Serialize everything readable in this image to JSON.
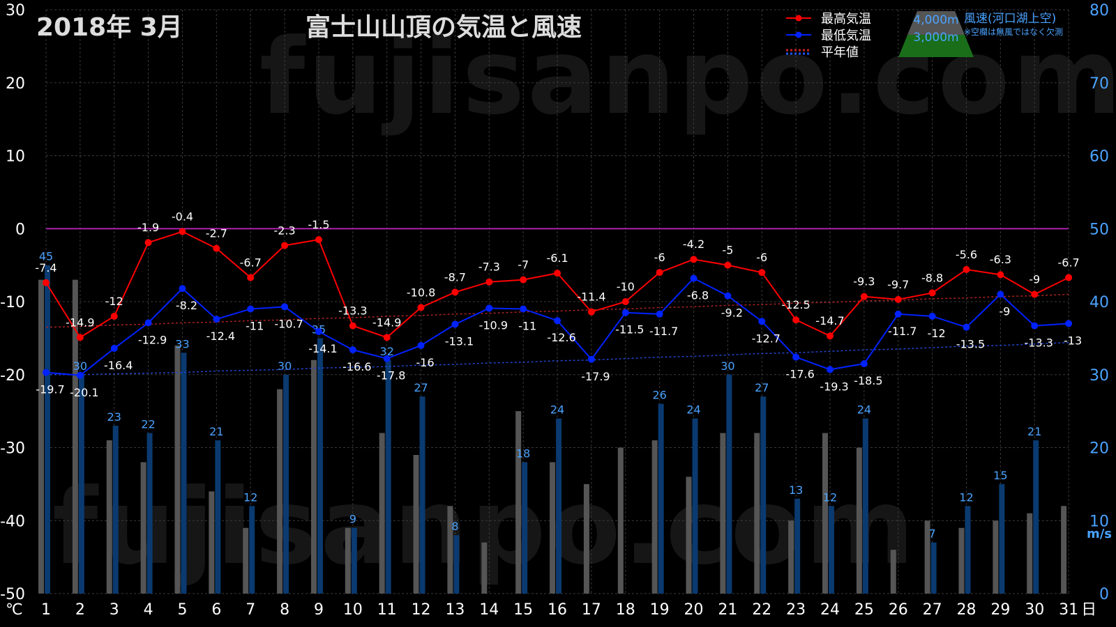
{
  "header": {
    "period": "2018年  3月",
    "title": "富士山山頂の気温と風速"
  },
  "legend": {
    "max_label": "最高気温",
    "min_label": "最低気温",
    "normal_label": "平年値",
    "alt_4000": "4,000m",
    "alt_3000": "3,000m",
    "wind_label": "風速(河口湖上空)",
    "wind_note": "※空欄は無風ではなく欠測"
  },
  "watermark": "fujisanpo.com",
  "colors": {
    "max": "#ff0000",
    "min": "#0022ff",
    "zero_line": "#aa22aa",
    "bar_3000": "#555555",
    "bar_4000": "#0a3a70",
    "axis_right": "#4aa3ff",
    "grid": "#3a3a3a",
    "mountain_top": "#555555",
    "mountain_bottom": "#1a6e1a"
  },
  "chart_data": {
    "type": "line+bar",
    "x": [
      1,
      2,
      3,
      4,
      5,
      6,
      7,
      8,
      9,
      10,
      11,
      12,
      13,
      14,
      15,
      16,
      17,
      18,
      19,
      20,
      21,
      22,
      23,
      24,
      25,
      26,
      27,
      28,
      29,
      30,
      31
    ],
    "x_unit": "日",
    "y_left_label": "℃",
    "y_left_lim": [
      -50,
      30
    ],
    "y_left_ticks": [
      -50,
      -40,
      -30,
      -20,
      -10,
      0,
      10,
      20,
      30
    ],
    "y_right_label": "m/s",
    "y_right_lim": [
      0,
      80
    ],
    "y_right_ticks": [
      0,
      10,
      20,
      30,
      40,
      50,
      60,
      70,
      80
    ],
    "grid": true,
    "series": [
      {
        "name": "最高気温",
        "values": [
          -7.4,
          -14.9,
          -12,
          -1.9,
          -0.4,
          -2.7,
          -6.7,
          -2.3,
          -1.5,
          -13.3,
          -14.9,
          -10.8,
          -8.7,
          -7.3,
          -7,
          -6.1,
          -11.4,
          -10,
          -6,
          -4.2,
          -5,
          -6,
          -12.5,
          -14.7,
          -9.3,
          -9.7,
          -8.8,
          -5.6,
          -6.3,
          -9,
          -6.7
        ]
      },
      {
        "name": "最低気温",
        "values": [
          -19.7,
          -20.1,
          -16.4,
          -12.9,
          -8.2,
          -12.4,
          -11,
          -10.7,
          -14.1,
          -16.6,
          -17.8,
          -16,
          -13.1,
          -10.9,
          -11,
          -12.6,
          -17.9,
          -11.5,
          -11.7,
          -6.8,
          -9.2,
          -12.7,
          -17.6,
          -19.3,
          -18.5,
          -11.7,
          -12,
          -13.5,
          -9,
          -13.3,
          -13
        ]
      },
      {
        "name": "平年値(最高)",
        "values": [
          -13.5,
          -13.4,
          -13.2,
          -13.1,
          -12.9,
          -12.8,
          -12.6,
          -12.5,
          -12.3,
          -12.2,
          -12.0,
          -11.9,
          -11.7,
          -11.6,
          -11.4,
          -11.3,
          -11.1,
          -11.0,
          -10.8,
          -10.7,
          -10.5,
          -10.4,
          -10.2,
          -10.1,
          -9.9,
          -9.8,
          -9.6,
          -9.5,
          -9.3,
          -9.2,
          -9.0
        ]
      },
      {
        "name": "平年値(最低)",
        "values": [
          -20.0,
          -20.0,
          -19.9,
          -19.8,
          -19.7,
          -19.5,
          -19.4,
          -19.3,
          -19.1,
          -19.0,
          -18.9,
          -18.7,
          -18.6,
          -18.4,
          -18.3,
          -18.1,
          -18.0,
          -17.8,
          -17.6,
          -17.5,
          -17.3,
          -17.1,
          -17.0,
          -16.8,
          -16.6,
          -16.5,
          -16.3,
          -16.1,
          -16.0,
          -15.8,
          -15.6
        ]
      }
    ],
    "wind_3000": [
      43,
      43,
      21,
      18,
      34,
      14,
      9,
      28,
      32,
      9,
      22,
      19,
      12,
      7,
      25,
      18,
      15,
      20,
      21,
      16,
      22,
      22,
      10,
      22,
      20,
      6,
      10,
      9,
      10,
      11,
      12
    ],
    "wind_4000": [
      45,
      30,
      23,
      22,
      33,
      21,
      12,
      30,
      35,
      9,
      32,
      27,
      8,
      null,
      18,
      24,
      null,
      null,
      26,
      24,
      30,
      27,
      13,
      12,
      24,
      null,
      7,
      12,
      15,
      21,
      null
    ],
    "wind_4000_labels_shown": true
  }
}
